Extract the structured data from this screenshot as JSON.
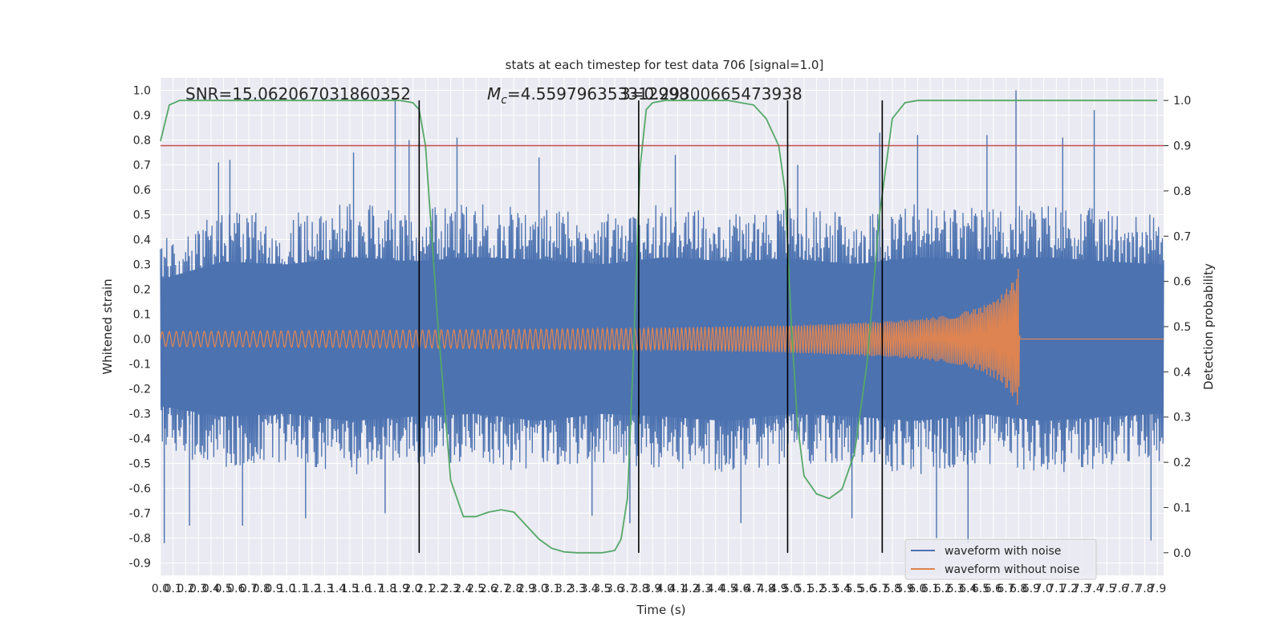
{
  "chart_data": {
    "type": "line",
    "title": "stats at each timestep for test data 706 [signal=1.0]",
    "xlabel": "Time (s)",
    "ylabel": "Whitened strain",
    "y2label": "Detection probability",
    "xlim": [
      0.0,
      7.95
    ],
    "ylim": [
      -0.95,
      1.05
    ],
    "y2lim": [
      -0.05,
      1.05
    ],
    "x_ticks": [
      "0.0",
      "0.1",
      "0.2",
      "0.3",
      "0.4",
      "0.5",
      "0.6",
      "0.7",
      "0.8",
      "0.9",
      "1.0",
      "1.1",
      "1.2",
      "1.3",
      "1.4",
      "1.5",
      "1.6",
      "1.7",
      "1.8",
      "1.9",
      "2.0",
      "2.1",
      "2.2",
      "2.3",
      "2.4",
      "2.5",
      "2.6",
      "2.7",
      "2.8",
      "2.9",
      "3.0",
      "3.1",
      "3.2",
      "3.3",
      "3.4",
      "3.5",
      "3.6",
      "3.7",
      "3.8",
      "3.9",
      "4.0",
      "4.1",
      "4.2",
      "4.3",
      "4.4",
      "4.5",
      "4.6",
      "4.7",
      "4.8",
      "4.9",
      "5.0",
      "5.1",
      "5.2",
      "5.3",
      "5.4",
      "5.5",
      "5.6",
      "5.7",
      "5.8",
      "5.9",
      "6.0",
      "6.1",
      "6.2",
      "6.3",
      "6.4",
      "6.5",
      "6.6",
      "6.7",
      "6.8",
      "6.9",
      "7.0",
      "7.1",
      "7.2",
      "7.3",
      "7.4",
      "7.5",
      "7.6",
      "7.7",
      "7.8",
      "7.9"
    ],
    "y_ticks": [
      "1.0",
      "0.9",
      "0.8",
      "0.7",
      "0.6",
      "0.5",
      "0.4",
      "0.3",
      "0.2",
      "0.1",
      "0.0",
      "-0.1",
      "-0.2",
      "-0.3",
      "-0.4",
      "-0.5",
      "-0.6",
      "-0.7",
      "-0.8",
      "-0.9"
    ],
    "y2_ticks": [
      "1.0",
      "0.9",
      "0.8",
      "0.7",
      "0.6",
      "0.5",
      "0.4",
      "0.3",
      "0.2",
      "0.1",
      "0.0"
    ],
    "annotations": {
      "snr": "SNR=15.062067031860352",
      "mc_prefix": "M",
      "mc_sub": "c",
      "mc_value": "=4.559796353312998",
      "overlap": "3=0.29300665473938"
    },
    "threshold": {
      "value": 0.9,
      "color": "#c44e52"
    },
    "vertical_lines": [
      2.05,
      3.79,
      4.97,
      5.72
    ],
    "noise_envelope": {
      "t": [
        0.0,
        0.5,
        1.0,
        1.5,
        2.0,
        2.5,
        3.0,
        3.5,
        4.0,
        4.5,
        5.0,
        5.5,
        6.0,
        6.5,
        7.0,
        7.5,
        7.95
      ],
      "upper": [
        0.4,
        0.52,
        0.5,
        0.55,
        0.52,
        0.55,
        0.53,
        0.5,
        0.55,
        0.52,
        0.54,
        0.5,
        0.55,
        0.53,
        0.55,
        0.52,
        0.5
      ],
      "lower": [
        -0.45,
        -0.52,
        -0.5,
        -0.55,
        -0.52,
        -0.5,
        -0.55,
        -0.5,
        -0.52,
        -0.55,
        -0.5,
        -0.52,
        -0.55,
        -0.5,
        -0.55,
        -0.52,
        -0.5
      ]
    },
    "noise_spikes": [
      {
        "t": 0.03,
        "v": -0.82
      },
      {
        "t": 0.23,
        "v": -0.75
      },
      {
        "t": 0.46,
        "v": 0.71
      },
      {
        "t": 0.55,
        "v": 0.72
      },
      {
        "t": 0.65,
        "v": -0.75
      },
      {
        "t": 1.15,
        "v": -0.72
      },
      {
        "t": 1.53,
        "v": 0.75
      },
      {
        "t": 1.78,
        "v": -0.7
      },
      {
        "t": 1.86,
        "v": 0.97
      },
      {
        "t": 1.97,
        "v": 0.8
      },
      {
        "t": 2.35,
        "v": 0.81
      },
      {
        "t": 3.0,
        "v": 0.73
      },
      {
        "t": 3.42,
        "v": -0.71
      },
      {
        "t": 3.72,
        "v": -0.74
      },
      {
        "t": 4.08,
        "v": 0.74
      },
      {
        "t": 4.6,
        "v": -0.74
      },
      {
        "t": 5.05,
        "v": 0.7
      },
      {
        "t": 5.48,
        "v": -0.72
      },
      {
        "t": 5.7,
        "v": 0.83
      },
      {
        "t": 6.0,
        "v": 0.82
      },
      {
        "t": 6.15,
        "v": -0.8
      },
      {
        "t": 6.55,
        "v": 0.82
      },
      {
        "t": 6.78,
        "v": 1.0
      },
      {
        "t": 7.15,
        "v": 0.81
      },
      {
        "t": 7.4,
        "v": 0.92
      },
      {
        "t": 7.85,
        "v": -0.81
      },
      {
        "t": 6.4,
        "v": -0.82
      }
    ],
    "clean_envelope": {
      "t": [
        0.0,
        1.0,
        2.0,
        3.0,
        4.0,
        5.0,
        5.5,
        6.0,
        6.3,
        6.5,
        6.65,
        6.75,
        6.8,
        6.81,
        7.95
      ],
      "amp": [
        0.03,
        0.033,
        0.036,
        0.04,
        0.045,
        0.055,
        0.065,
        0.08,
        0.1,
        0.13,
        0.17,
        0.23,
        0.29,
        0.0,
        0.0
      ]
    },
    "series": [
      {
        "name": "waveform with noise",
        "color": "#4c72b0"
      },
      {
        "name": "waveform without noise",
        "color": "#dd8452"
      },
      {
        "name": "",
        "color": "#55a868",
        "axis": "right",
        "x": [
          0.0,
          0.07,
          0.15,
          0.3,
          0.5,
          1.0,
          1.5,
          1.9,
          2.0,
          2.05,
          2.1,
          2.2,
          2.3,
          2.4,
          2.5,
          2.6,
          2.7,
          2.8,
          2.9,
          3.0,
          3.1,
          3.2,
          3.3,
          3.4,
          3.5,
          3.6,
          3.65,
          3.7,
          3.75,
          3.8,
          3.85,
          3.9,
          4.0,
          4.5,
          4.7,
          4.8,
          4.9,
          4.95,
          5.0,
          5.05,
          5.1,
          5.2,
          5.3,
          5.4,
          5.5,
          5.6,
          5.7,
          5.8,
          5.9,
          6.0,
          6.5,
          7.0,
          7.5,
          7.9
        ],
        "y": [
          0.91,
          0.99,
          1.0,
          1.0,
          1.0,
          1.0,
          1.0,
          1.0,
          0.995,
          0.98,
          0.9,
          0.5,
          0.16,
          0.08,
          0.08,
          0.09,
          0.095,
          0.09,
          0.06,
          0.03,
          0.01,
          0.002,
          0.0,
          0.0,
          0.0,
          0.005,
          0.03,
          0.12,
          0.45,
          0.85,
          0.98,
          0.995,
          1.0,
          1.0,
          0.99,
          0.96,
          0.9,
          0.8,
          0.5,
          0.28,
          0.17,
          0.13,
          0.12,
          0.14,
          0.22,
          0.42,
          0.75,
          0.96,
          0.995,
          1.0,
          1.0,
          1.0,
          1.0,
          1.0
        ]
      }
    ],
    "legend": {
      "placement": "lower-right",
      "entries": [
        "waveform with noise",
        "waveform without noise"
      ]
    },
    "grid": true,
    "colors": {
      "background": "#eaeaf2",
      "grid": "#ffffff",
      "noise": "#4c72b0",
      "clean": "#dd8452",
      "probability": "#55a868",
      "threshold": "#c44e52",
      "vline": "#000000"
    }
  }
}
